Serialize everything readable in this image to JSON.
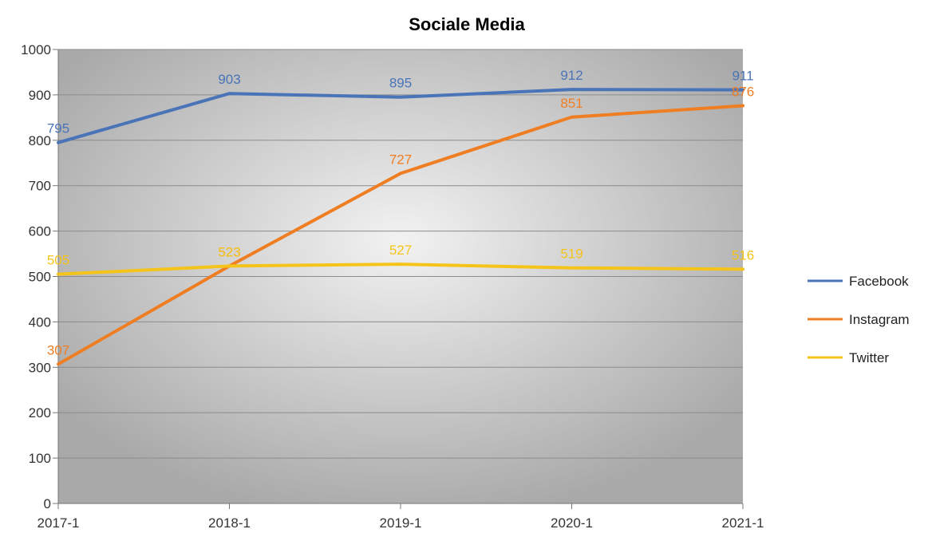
{
  "chart_data": {
    "type": "line",
    "title": "Sociale Media",
    "xlabel": "",
    "ylabel": "",
    "categories": [
      "2017-1",
      "2018-1",
      "2019-1",
      "2020-1",
      "2021-1"
    ],
    "ylim": [
      0,
      1000
    ],
    "yticks": [
      0,
      100,
      200,
      300,
      400,
      500,
      600,
      700,
      800,
      900,
      1000
    ],
    "ytick_labels": [
      "0",
      "100",
      "200",
      "300",
      "400",
      "500",
      "600",
      "700",
      "800",
      "900",
      "1000"
    ],
    "grid": true,
    "legend_position": "right",
    "data_labels": true,
    "series": [
      {
        "name": "Facebook",
        "color": "#4a74b8",
        "values": [
          795,
          903,
          895,
          912,
          911
        ]
      },
      {
        "name": "Instagram",
        "color": "#ef7d22",
        "values": [
          307,
          523,
          727,
          851,
          876
        ]
      },
      {
        "name": "Twitter",
        "color": "#f5c41a",
        "values": [
          505,
          523,
          527,
          519,
          516
        ]
      }
    ]
  }
}
